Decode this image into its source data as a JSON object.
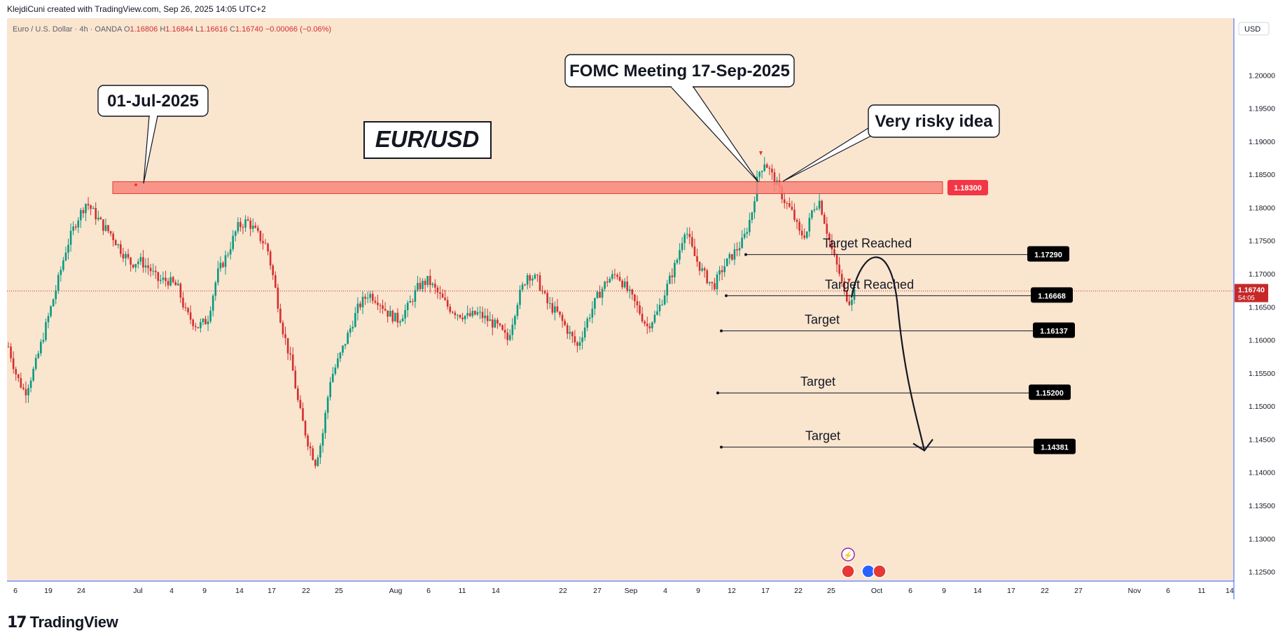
{
  "header": {
    "credit": "KlejdiCuni created with TradingView.com, Sep 26, 2025 14:05 UTC+2"
  },
  "footer": {
    "brand_mark": "17",
    "brand_name": "TradingView"
  },
  "legend": {
    "symbol": "Euro / U.S. Dollar · 4h · OANDA",
    "open": "O1.16806",
    "high": "H1.16844",
    "low": "L1.16616",
    "close": "C1.16740",
    "change": "−0.00066 (−0.06%)"
  },
  "currency_button": "USD",
  "colors": {
    "background": "#fae5cf",
    "up_candle": "#089981",
    "down_candle": "#d32f2f",
    "resistance_zone": "#f7877b",
    "resistance_border": "#e53935",
    "axis_line": "#2962ff",
    "price_label_bg": "#000000",
    "current_price_bg": "#c62828"
  },
  "chart_data": {
    "type": "candlestick",
    "symbol": "EUR/USD",
    "timeframe": "4h",
    "ylim": [
      1.125,
      1.205
    ],
    "y_ticks": [
      "1.20000",
      "1.19500",
      "1.19000",
      "1.18500",
      "1.18000",
      "1.17500",
      "1.17000",
      "1.16500",
      "1.16000",
      "1.15500",
      "1.15000",
      "1.14500",
      "1.14000",
      "1.13500",
      "1.13000",
      "1.12500"
    ],
    "x_ticks": [
      "6",
      "19",
      "24",
      "Jul",
      "4",
      "9",
      "14",
      "17",
      "22",
      "25",
      "Aug",
      "6",
      "11",
      "14",
      "22",
      "27",
      "Sep",
      "4",
      "9",
      "12",
      "17",
      "22",
      "25",
      "Oct",
      "6",
      "9",
      "14",
      "17",
      "22",
      "27",
      "Nov",
      "6",
      "11",
      "14"
    ],
    "price_path": [
      [
        0,
        1.159
      ],
      [
        10,
        1.1545
      ],
      [
        20,
        1.152
      ],
      [
        32,
        1.156
      ],
      [
        45,
        1.162
      ],
      [
        58,
        1.168
      ],
      [
        70,
        1.174
      ],
      [
        82,
        1.178
      ],
      [
        94,
        1.1808
      ],
      [
        104,
        1.179
      ],
      [
        114,
        1.1772
      ],
      [
        124,
        1.176
      ],
      [
        136,
        1.1735
      ],
      [
        148,
        1.1715
      ],
      [
        158,
        1.172
      ],
      [
        170,
        1.1708
      ],
      [
        180,
        1.169
      ],
      [
        192,
        1.169
      ],
      [
        204,
        1.168
      ],
      [
        214,
        1.164
      ],
      [
        228,
        1.162
      ],
      [
        240,
        1.163
      ],
      [
        252,
        1.17
      ],
      [
        264,
        1.173
      ],
      [
        276,
        1.177
      ],
      [
        288,
        1.178
      ],
      [
        300,
        1.176
      ],
      [
        312,
        1.174
      ],
      [
        320,
        1.169
      ],
      [
        330,
        1.162
      ],
      [
        342,
        1.156
      ],
      [
        350,
        1.15
      ],
      [
        360,
        1.145
      ],
      [
        370,
        1.1415
      ],
      [
        378,
        1.145
      ],
      [
        388,
        1.154
      ],
      [
        398,
        1.157
      ],
      [
        410,
        1.161
      ],
      [
        422,
        1.165
      ],
      [
        434,
        1.167
      ],
      [
        446,
        1.166
      ],
      [
        458,
        1.164
      ],
      [
        470,
        1.163
      ],
      [
        482,
        1.165
      ],
      [
        494,
        1.168
      ],
      [
        506,
        1.169
      ],
      [
        518,
        1.167
      ],
      [
        530,
        1.165
      ],
      [
        542,
        1.164
      ],
      [
        554,
        1.1635
      ],
      [
        566,
        1.164
      ],
      [
        578,
        1.163
      ],
      [
        590,
        1.162
      ],
      [
        602,
        1.16
      ],
      [
        614,
        1.166
      ],
      [
        626,
        1.17
      ],
      [
        638,
        1.169
      ],
      [
        650,
        1.1655
      ],
      [
        662,
        1.164
      ],
      [
        674,
        1.1615
      ],
      [
        686,
        1.159
      ],
      [
        698,
        1.163
      ],
      [
        710,
        1.1665
      ],
      [
        722,
        1.169
      ],
      [
        734,
        1.17
      ],
      [
        746,
        1.1675
      ],
      [
        758,
        1.165
      ],
      [
        770,
        1.162
      ],
      [
        782,
        1.164
      ],
      [
        794,
        1.168
      ],
      [
        806,
        1.172
      ],
      [
        816,
        1.177
      ],
      [
        826,
        1.173
      ],
      [
        838,
        1.17
      ],
      [
        850,
        1.168
      ],
      [
        862,
        1.171
      ],
      [
        874,
        1.173
      ],
      [
        886,
        1.175
      ],
      [
        896,
        1.179
      ],
      [
        904,
        1.185
      ],
      [
        912,
        1.187
      ],
      [
        920,
        1.185
      ],
      [
        928,
        1.183
      ],
      [
        936,
        1.181
      ],
      [
        946,
        1.179
      ],
      [
        954,
        1.176
      ],
      [
        962,
        1.176
      ],
      [
        970,
        1.18
      ],
      [
        978,
        1.181
      ],
      [
        986,
        1.177
      ],
      [
        994,
        1.173
      ],
      [
        1002,
        1.17
      ],
      [
        1008,
        1.167
      ],
      [
        1014,
        1.166
      ],
      [
        1020,
        1.1674
      ]
    ],
    "resistance_zone": {
      "level": 1.183,
      "label": "1.18300"
    },
    "horizontal_levels": [
      {
        "price": 1.1729,
        "label": "1.17290",
        "text": "Target Reached"
      },
      {
        "price": 1.16668,
        "label": "1.16668",
        "text": "Target Reached"
      },
      {
        "price": 1.16137,
        "label": "1.16137",
        "text": "Target"
      },
      {
        "price": 1.152,
        "label": "1.15200",
        "text": "Target"
      },
      {
        "price": 1.14381,
        "label": "1.14381",
        "text": "Target"
      }
    ],
    "current_price": {
      "price": 1.1674,
      "label": "1.16740",
      "countdown": "54:05"
    },
    "annotations": {
      "title": "EUR/USD",
      "callout_1": "01-Jul-2025",
      "callout_2": "FOMC Meeting 17-Sep-2025",
      "callout_3": "Very risky idea"
    },
    "projection": "curved arrow from current price up to ~1.1730 then down to ~1.1435"
  }
}
